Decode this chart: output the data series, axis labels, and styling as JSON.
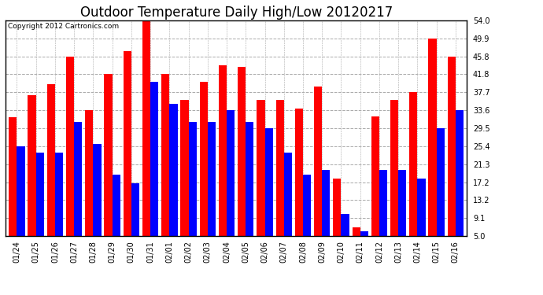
{
  "title": "Outdoor Temperature Daily High/Low 20120217",
  "copyright": "Copyright 2012 Cartronics.com",
  "dates": [
    "01/24",
    "01/25",
    "01/26",
    "01/27",
    "01/28",
    "01/29",
    "01/30",
    "01/31",
    "02/01",
    "02/02",
    "02/03",
    "02/04",
    "02/05",
    "02/06",
    "02/07",
    "02/08",
    "02/09",
    "02/10",
    "02/11",
    "02/12",
    "02/13",
    "02/14",
    "02/15",
    "02/16"
  ],
  "highs": [
    32.0,
    37.0,
    39.5,
    45.8,
    33.6,
    41.8,
    47.0,
    54.0,
    41.8,
    36.0,
    40.0,
    43.8,
    43.4,
    36.0,
    36.0,
    34.0,
    39.0,
    18.0,
    7.0,
    32.2,
    36.0,
    37.7,
    50.0,
    45.8
  ],
  "lows": [
    25.4,
    24.0,
    24.0,
    31.0,
    26.0,
    19.0,
    17.0,
    40.0,
    35.0,
    31.0,
    31.0,
    33.6,
    31.0,
    29.5,
    24.0,
    19.0,
    20.0,
    10.0,
    6.0,
    20.0,
    20.0,
    18.0,
    29.5,
    33.6
  ],
  "high_color": "#ff0000",
  "low_color": "#0000ff",
  "bg_color": "#ffffff",
  "yticks": [
    5.0,
    9.1,
    13.2,
    17.2,
    21.3,
    25.4,
    29.5,
    33.6,
    37.7,
    41.8,
    45.8,
    49.9,
    54.0
  ],
  "ymin": 5.0,
  "ymax": 54.0,
  "title_fontsize": 12,
  "tick_fontsize": 7,
  "copyright_fontsize": 6.5
}
